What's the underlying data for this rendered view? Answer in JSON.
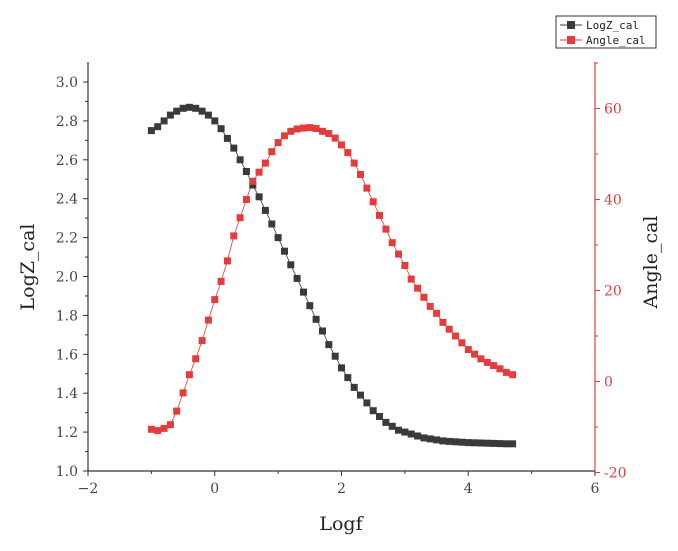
{
  "chart_data": {
    "type": "scatter",
    "xlabel": "Logf",
    "ylabel_left": "LogZ_cal",
    "ylabel_right": "Angle_cal",
    "xlim": [
      -2,
      6
    ],
    "xticks": [
      "-2",
      "0",
      "2",
      "4",
      "6"
    ],
    "ylim_left": [
      1.0,
      3.0
    ],
    "yticks_left": [
      "1.0",
      "1.2",
      "1.4",
      "1.6",
      "1.8",
      "2.0",
      "2.2",
      "2.4",
      "2.6",
      "2.8",
      "3.0"
    ],
    "ylim_right": [
      -20,
      70
    ],
    "yticks_right": [
      "-20",
      "0",
      "20",
      "40",
      "60"
    ],
    "grid": false,
    "legend_position": "top-right",
    "colors": {
      "LogZ_cal": "#3a3a3a",
      "Angle_cal": "#e23c3c"
    },
    "x": [
      -1.0,
      -0.9,
      -0.8,
      -0.7,
      -0.6,
      -0.5,
      -0.4,
      -0.3,
      -0.2,
      -0.1,
      0.0,
      0.1,
      0.2,
      0.3,
      0.4,
      0.5,
      0.6,
      0.7,
      0.8,
      0.9,
      1.0,
      1.1,
      1.2,
      1.3,
      1.4,
      1.5,
      1.6,
      1.7,
      1.8,
      1.9,
      2.0,
      2.1,
      2.2,
      2.3,
      2.4,
      2.5,
      2.6,
      2.7,
      2.8,
      2.9,
      3.0,
      3.1,
      3.2,
      3.3,
      3.4,
      3.5,
      3.6,
      3.7,
      3.8,
      3.9,
      4.0,
      4.1,
      4.2,
      4.3,
      4.4,
      4.5,
      4.6,
      4.7
    ],
    "series": [
      {
        "name": "LogZ_cal",
        "axis": "left",
        "values": [
          2.75,
          2.77,
          2.8,
          2.83,
          2.85,
          2.865,
          2.87,
          2.865,
          2.85,
          2.83,
          2.8,
          2.76,
          2.71,
          2.66,
          2.6,
          2.54,
          2.47,
          2.41,
          2.34,
          2.27,
          2.2,
          2.13,
          2.06,
          1.99,
          1.92,
          1.85,
          1.78,
          1.72,
          1.65,
          1.59,
          1.53,
          1.48,
          1.43,
          1.39,
          1.35,
          1.31,
          1.28,
          1.25,
          1.23,
          1.21,
          1.2,
          1.19,
          1.18,
          1.17,
          1.165,
          1.16,
          1.155,
          1.152,
          1.15,
          1.148,
          1.146,
          1.145,
          1.144,
          1.143,
          1.142,
          1.141,
          1.14,
          1.14
        ]
      },
      {
        "name": "Angle_cal",
        "axis": "right",
        "values": [
          -10.5,
          -10.8,
          -10.3,
          -9.5,
          -6.5,
          -2.5,
          1.5,
          5.0,
          9.0,
          13.5,
          18.0,
          22.0,
          26.5,
          32.0,
          36.0,
          40.0,
          44.0,
          46.0,
          48.0,
          50.5,
          52.5,
          54.0,
          55.0,
          55.5,
          55.7,
          55.8,
          55.6,
          55.0,
          54.5,
          53.5,
          52.0,
          50.3,
          48.0,
          45.5,
          42.5,
          39.5,
          36.5,
          33.5,
          30.5,
          28.0,
          25.5,
          22.5,
          20.5,
          18.5,
          16.5,
          15.0,
          13.0,
          11.5,
          10.0,
          8.5,
          7.0,
          6.0,
          5.0,
          4.2,
          3.5,
          2.8,
          2.0,
          1.5
        ]
      }
    ]
  }
}
